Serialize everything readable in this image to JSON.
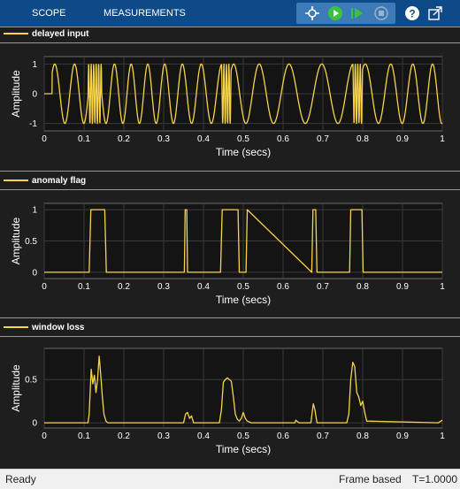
{
  "toolbar": {
    "tabs": [
      {
        "label": "SCOPE"
      },
      {
        "label": "MEASUREMENTS"
      }
    ],
    "buttons": [
      {
        "name": "signal-selector-icon"
      },
      {
        "name": "run-icon"
      },
      {
        "name": "step-forward-icon"
      },
      {
        "name": "stop-icon"
      },
      {
        "name": "help-icon"
      },
      {
        "name": "undock-icon"
      }
    ]
  },
  "colors": {
    "trace": "#f7d34a",
    "plot_bg": "#141414",
    "grid": "#3a3a3a",
    "toolbar": "#0d4a87"
  },
  "panels": [
    {
      "legend": "delayed input",
      "ylabel": "Amplitude",
      "xlabel": "Time (secs)",
      "xticks": [
        "0",
        "0.1",
        "0.2",
        "0.3",
        "0.4",
        "0.5",
        "0.6",
        "0.7",
        "0.8",
        "0.9",
        "1"
      ],
      "yticks": [
        "1",
        "0",
        "-1"
      ],
      "chart_data": {
        "type": "line",
        "xlim": [
          0,
          1
        ],
        "ylim": [
          -1.25,
          1.25
        ],
        "signal": "chirp-sinusoid with high-frequency bursts near 0.12-0.15, 0.45-0.47 and 0.78-0.80 s",
        "series": [
          {
            "values_description": "amplitude oscillating between -1 and 1"
          }
        ]
      }
    },
    {
      "legend": "anomaly flag",
      "ylabel": "Amplitude",
      "xlabel": "Time (secs)",
      "xticks": [
        "0",
        "0.1",
        "0.2",
        "0.3",
        "0.4",
        "0.5",
        "0.6",
        "0.7",
        "0.8",
        "0.9",
        "1"
      ],
      "yticks": [
        "1",
        "0.5",
        "0"
      ],
      "chart_data": {
        "type": "line",
        "xlim": [
          0,
          1
        ],
        "ylim": [
          -0.1,
          1.1
        ],
        "x": [
          0,
          0.113,
          0.117,
          0.152,
          0.156,
          0.352,
          0.354,
          0.358,
          0.36,
          0.443,
          0.447,
          0.487,
          0.49,
          0.507,
          0.51,
          0.672,
          0.675,
          0.682,
          0.685,
          0.767,
          0.77,
          0.798,
          0.801,
          1
        ],
        "y": [
          0,
          0,
          1,
          1,
          0,
          0,
          1,
          1,
          0,
          0,
          1,
          1,
          0,
          0,
          1,
          0,
          1,
          1,
          0,
          0,
          1,
          1,
          0,
          0
        ]
      }
    },
    {
      "legend": "window loss",
      "ylabel": "Amplitude",
      "xlabel": "Time (secs)",
      "xticks": [
        "0",
        "0.1",
        "0.2",
        "0.3",
        "0.4",
        "0.5",
        "0.6",
        "0.7",
        "0.8",
        "0.9",
        "1"
      ],
      "yticks": [
        "0.5",
        "0"
      ],
      "chart_data": {
        "type": "line",
        "xlim": [
          0,
          1
        ],
        "ylim": [
          -0.06,
          0.86
        ],
        "x": [
          0,
          0.11,
          0.113,
          0.118,
          0.122,
          0.126,
          0.13,
          0.134,
          0.138,
          0.142,
          0.146,
          0.15,
          0.155,
          0.16,
          0.35,
          0.355,
          0.36,
          0.365,
          0.37,
          0.375,
          0.44,
          0.445,
          0.45,
          0.455,
          0.46,
          0.465,
          0.47,
          0.475,
          0.48,
          0.485,
          0.49,
          0.495,
          0.5,
          0.505,
          0.51,
          0.52,
          0.63,
          0.632,
          0.64,
          0.67,
          0.673,
          0.676,
          0.68,
          0.685,
          0.76,
          0.765,
          0.77,
          0.775,
          0.78,
          0.785,
          0.79,
          0.795,
          0.8,
          0.805,
          0.81,
          0.99,
          1
        ],
        "y": [
          0,
          0,
          0.1,
          0.62,
          0.45,
          0.55,
          0.35,
          0.5,
          0.77,
          0.55,
          0.3,
          0.1,
          0.02,
          0,
          0,
          0.1,
          0.12,
          0.05,
          0.08,
          0,
          0,
          0.15,
          0.47,
          0.5,
          0.52,
          0.5,
          0.48,
          0.3,
          0.1,
          0.04,
          0.02,
          0.05,
          0.12,
          0.05,
          0.02,
          0,
          0,
          0.03,
          0,
          0,
          0.12,
          0.22,
          0.15,
          0,
          0,
          0.1,
          0.5,
          0.7,
          0.65,
          0.35,
          0.3,
          0.2,
          0.25,
          0.12,
          0.02,
          0,
          0.03
        ]
      }
    }
  ],
  "statusbar": {
    "state": "Ready",
    "mode": "Frame based",
    "time": "T=1.0000"
  }
}
